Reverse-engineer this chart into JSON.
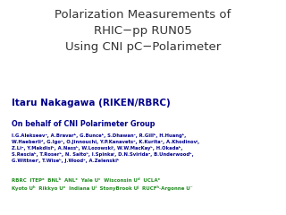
{
  "background_color": "#ffffff",
  "title_lines": [
    "Polarization Measurements of",
    "RHIC−pp RUN05",
    "Using CNI pC−Polarimeter"
  ],
  "title_color": "#333333",
  "title_fontsize": 9.5,
  "author_name": "Itaru Nakagawa (RIKEN/RBRC)",
  "author_color": "#00008b",
  "author_fontsize": 7.5,
  "behalf_text": "On behalf of CNI Polarimeter Group",
  "behalf_color": "#00008b",
  "behalf_fontsize": 5.8,
  "members_lines": [
    "I.G.Alekseevᵃ, A.Bravarᵇ, G.Bunceᵇ, S.Dhawanᶜ, R.Gillᵇ, H.Huangᵇ,",
    "W.Haeberliᵈ, G.Igoᵉ, O.Jinnouchi, Y.P.Kanavetsᵃ, K.Kuritaᵉ, A.Khodinovʲ,",
    "Z.Liᵉ, Y.Makdisiᵇ, A.Nassʰ, W.Lozowskiⁱ, W.W.MacKayᵇ, H.Okadaᵇ,",
    "S.Resciaᵇ, T.Roserᵇ, N. Saitoʰ, I.Spinkaⁱ, D.N.Sviridaᵃ, B.Underwoodᵇ,",
    "G.Wittnerⁱ, T.Wiseʰ, J.Woodᵉ, A.Zelenskiᵇ"
  ],
  "members_color": "#00008b",
  "members_fontsize": 3.8,
  "institutions_lines": [
    "RBRC  ITEPᵃ  BNLᵇ  ANLᵉ  Yale Uᶜ  Wisconsin Uᵈ  UCLAᵉ",
    "Kyoto Uʰ  Rikkyo Uᵉ  Indiana Uⁱ  StonyBrook Uʲ  RUCFʰ·Argonne U⁻"
  ],
  "institutions_color": "#228b22",
  "institutions_fontsize": 4.0,
  "fig_width": 3.2,
  "fig_height": 2.4,
  "dpi": 100
}
